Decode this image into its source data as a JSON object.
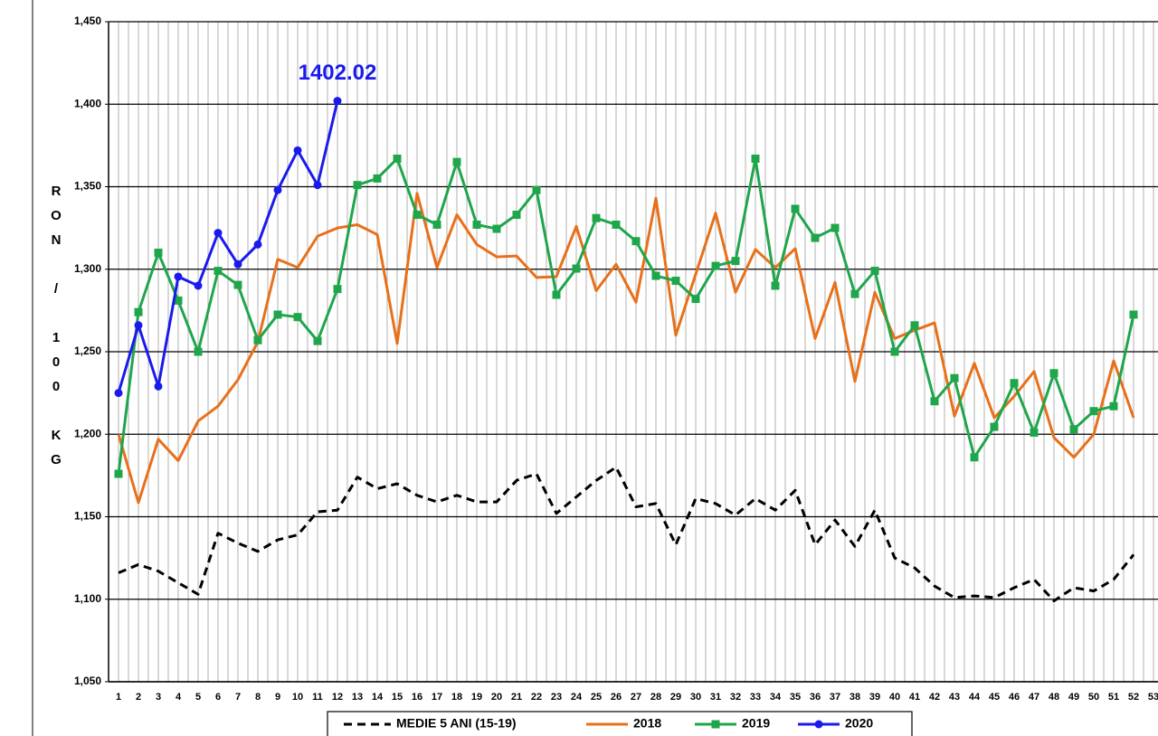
{
  "chart_data": {
    "type": "line",
    "annotation": "1402.02",
    "y_label": "RON / 100 KG",
    "categories": [
      "1",
      "2",
      "3",
      "4",
      "5",
      "6",
      "7",
      "8",
      "9",
      "10",
      "11",
      "12",
      "13",
      "14",
      "15",
      "16",
      "17",
      "18",
      "19",
      "20",
      "21",
      "22",
      "23",
      "24",
      "25",
      "26",
      "27",
      "28",
      "29",
      "30",
      "31",
      "32",
      "33",
      "34",
      "35",
      "36",
      "37",
      "38",
      "39",
      "40",
      "41",
      "42",
      "43",
      "44",
      "45",
      "46",
      "47",
      "48",
      "49",
      "50",
      "51",
      "52",
      "53"
    ],
    "ylim": [
      1050,
      1450
    ],
    "yticks": [
      {
        "value": 1050,
        "label": "1,050"
      },
      {
        "value": 1100,
        "label": "1,100"
      },
      {
        "value": 1150,
        "label": "1,150"
      },
      {
        "value": 1200,
        "label": "1,200"
      },
      {
        "value": 1250,
        "label": "1,250"
      },
      {
        "value": 1300,
        "label": "1,300"
      },
      {
        "value": 1350,
        "label": "1,350"
      },
      {
        "value": 1400,
        "label": "1,400"
      },
      {
        "value": 1450,
        "label": "1,450"
      }
    ],
    "grid": true,
    "legend": "bottom",
    "series": [
      {
        "name": "MEDIE 5 ANI (15-19)",
        "color": "#000000",
        "dash": true,
        "marker": "none",
        "values": [
          1116,
          1121,
          1117,
          1110,
          1103,
          1140,
          1134,
          1129,
          1136,
          1139,
          1153,
          1154,
          1174,
          1167,
          1170,
          1163,
          1159,
          1163,
          1159,
          1159,
          1172,
          1176,
          1152,
          1162,
          1172,
          1180,
          1156,
          1158,
          1133,
          1161,
          1158,
          1151,
          1161,
          1154,
          1166,
          1133,
          1148,
          1132,
          1154,
          1125,
          1119,
          1108,
          1101,
          1102,
          1101,
          1107,
          1112,
          1099,
          1107,
          1105,
          1112,
          1127,
          null
        ]
      },
      {
        "name": "2018",
        "color": "#e8701a",
        "dash": false,
        "marker": "none",
        "values": [
          1200,
          1158.5,
          1197,
          1184,
          1208,
          1217,
          1233,
          1256,
          1306,
          1301,
          1320,
          1325,
          1327,
          1321,
          1255,
          1346,
          1301,
          1333,
          1315,
          1307.5,
          1308,
          1295,
          1295.5,
          1326,
          1287,
          1303,
          1280,
          1343,
          1260,
          1297,
          1334,
          1286,
          1312,
          1301,
          1312.5,
          1258,
          1292,
          1232,
          1286,
          1258,
          1263,
          1267.5,
          1211,
          1243,
          1210,
          1223,
          1238,
          1198,
          1186,
          1200,
          1244.5,
          1210,
          null
        ]
      },
      {
        "name": "2019",
        "color": "#1fa64b",
        "dash": false,
        "marker": "square",
        "values": [
          1176,
          1274,
          1310,
          1281,
          1250,
          1299,
          1290.5,
          1257,
          1272.5,
          1271,
          1256.5,
          1288,
          1351,
          1355,
          1367,
          1333,
          1327,
          1365,
          1327,
          1324.5,
          1333,
          1348,
          1284.5,
          1300.4,
          1331,
          1327,
          1317,
          1296,
          1293,
          1282,
          1302,
          1305,
          1367,
          1290,
          1336.6,
          1319,
          1325,
          1285,
          1299,
          1250,
          1266,
          1220,
          1234,
          1186,
          1204.5,
          1231,
          1201,
          1237,
          1203,
          1214,
          1217,
          1272.5,
          null
        ]
      },
      {
        "name": "2020",
        "color": "#1a1aee",
        "dash": false,
        "marker": "circle",
        "values": [
          1225,
          1266,
          1229,
          1295.5,
          1290,
          1322,
          1303,
          1315,
          1348,
          1372,
          1351,
          1402.02,
          null,
          null,
          null,
          null,
          null,
          null,
          null,
          null,
          null,
          null,
          null,
          null,
          null,
          null,
          null,
          null,
          null,
          null,
          null,
          null,
          null,
          null,
          null,
          null,
          null,
          null,
          null,
          null,
          null,
          null,
          null,
          null,
          null,
          null,
          null,
          null,
          null,
          null,
          null,
          null,
          null
        ]
      }
    ]
  }
}
